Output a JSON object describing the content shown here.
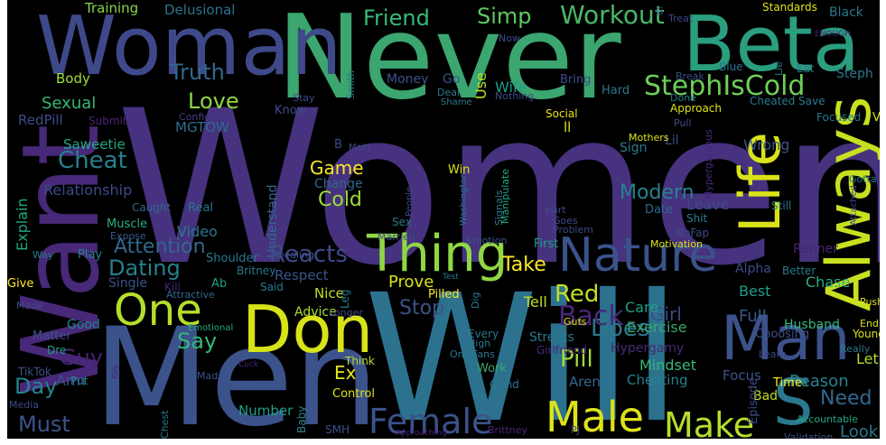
{
  "image": {
    "description_kind": "word cloud",
    "background_color": "#000000",
    "frame_color": "#ffffff",
    "palette": "viridis"
  },
  "words": [
    {
      "text": "Women",
      "color": "#46327e"
    },
    {
      "text": "Will",
      "color": "#2c728e"
    },
    {
      "text": "Men",
      "color": "#3b528b"
    },
    {
      "text": "Never",
      "color": "#3ba66f"
    },
    {
      "text": "Want",
      "color": "#482878"
    },
    {
      "text": "Woman",
      "color": "#3e4989"
    },
    {
      "text": "Beta",
      "color": "#2a9e7e"
    },
    {
      "text": "Always",
      "color": "#c8e020"
    },
    {
      "text": "Life",
      "color": "#dae319"
    },
    {
      "text": "Don",
      "color": "#d8e219"
    },
    {
      "text": "Man",
      "color": "#3b528b"
    },
    {
      "text": "Nature",
      "color": "#3b528b"
    },
    {
      "text": "Thing",
      "color": "#90d743"
    },
    {
      "text": "One",
      "color": "#b5de2b"
    },
    {
      "text": "Male",
      "color": "#dde318"
    },
    {
      "text": "Make",
      "color": "#b5de2b"
    },
    {
      "text": "Female",
      "color": "#3b528b"
    },
    {
      "text": "S",
      "color": "#2a788e"
    },
    {
      "text": "StephIsCold",
      "color": "#6ece58"
    },
    {
      "text": "Workout",
      "color": "#48b868"
    },
    {
      "text": "Simp",
      "color": "#5ec962"
    },
    {
      "text": "Friend",
      "color": "#38b977"
    },
    {
      "text": "Training",
      "color": "#86d549"
    },
    {
      "text": "Delusional",
      "color": "#2c728e"
    },
    {
      "text": "Truth",
      "color": "#31688e"
    },
    {
      "text": "Love",
      "color": "#8fd744"
    },
    {
      "text": "MGTOW",
      "color": "#2f6c8e"
    },
    {
      "text": "Body",
      "color": "#a2da37"
    },
    {
      "text": "Sexual",
      "color": "#35b779"
    },
    {
      "text": "RedPill",
      "color": "#3e4a89"
    },
    {
      "text": "Submit",
      "color": "#482475"
    },
    {
      "text": "Confidence",
      "color": "#433e85"
    },
    {
      "text": "Cheat",
      "color": "#26828e"
    },
    {
      "text": "Saweetie",
      "color": "#22a884"
    },
    {
      "text": "Explain",
      "color": "#22a884"
    },
    {
      "text": "Relationship",
      "color": "#3e4989"
    },
    {
      "text": "Game",
      "color": "#fde725"
    },
    {
      "text": "Cold",
      "color": "#a0da39"
    },
    {
      "text": "Change",
      "color": "#31688e"
    },
    {
      "text": "Understand",
      "color": "#31688e"
    },
    {
      "text": "Modern",
      "color": "#26828e"
    },
    {
      "text": "Doesn",
      "color": "#2a788e"
    },
    {
      "text": "Reacts",
      "color": "#3e4a89"
    },
    {
      "text": "Attention",
      "color": "#31688e"
    },
    {
      "text": "Dating",
      "color": "#277f8e"
    },
    {
      "text": "Take",
      "color": "#fde725"
    },
    {
      "text": "Video",
      "color": "#2a788e"
    },
    {
      "text": "Muscle",
      "color": "#29af7f"
    },
    {
      "text": "Expose",
      "color": "#38598c"
    },
    {
      "text": "Caught",
      "color": "#31688e"
    },
    {
      "text": "Real",
      "color": "#2a788e"
    },
    {
      "text": "Back",
      "color": "#482878"
    },
    {
      "text": "Red",
      "color": "#c2df23"
    },
    {
      "text": "Pill",
      "color": "#a2da37"
    },
    {
      "text": "Girl",
      "color": "#3e4a89"
    },
    {
      "text": "Say",
      "color": "#35b779"
    },
    {
      "text": "Guy",
      "color": "#482475"
    },
    {
      "text": "Day",
      "color": "#25848e"
    },
    {
      "text": "Must",
      "color": "#3b528b"
    },
    {
      "text": "Stop",
      "color": "#3b528b"
    },
    {
      "text": "Prove",
      "color": "#d8e219"
    },
    {
      "text": "Respect",
      "color": "#3b528b"
    },
    {
      "text": "Nice",
      "color": "#c2df23"
    },
    {
      "text": "Advice",
      "color": "#addc30"
    },
    {
      "text": "Ex",
      "color": "#e5e419"
    },
    {
      "text": "Single",
      "color": "#3b528b"
    },
    {
      "text": "Money",
      "color": "#3b528b"
    },
    {
      "text": "Go",
      "color": "#3b528b"
    },
    {
      "text": "Use",
      "color": "#bddf26"
    },
    {
      "text": "Wife",
      "color": "#1f9e89"
    },
    {
      "text": "Bring",
      "color": "#3e4a89"
    },
    {
      "text": "Social",
      "color": "#e5e419"
    },
    {
      "text": "Sign",
      "color": "#2a788e"
    },
    {
      "text": "Lil",
      "color": "#3e4a89"
    },
    {
      "text": "Wrong",
      "color": "#3b528b"
    },
    {
      "text": "Leave",
      "color": "#3e4a89"
    },
    {
      "text": "Date",
      "color": "#31688e"
    },
    {
      "text": "Care",
      "color": "#1f9e89"
    },
    {
      "text": "Exercise",
      "color": "#3ba66f"
    },
    {
      "text": "Full",
      "color": "#38598c"
    },
    {
      "text": "Best",
      "color": "#1f9e89"
    },
    {
      "text": "Alpha",
      "color": "#3e4a89"
    },
    {
      "text": "Chase",
      "color": "#29af7f"
    },
    {
      "text": "Husband",
      "color": "#35b779"
    },
    {
      "text": "Choosing",
      "color": "#3b528b"
    },
    {
      "text": "Reason",
      "color": "#26828e"
    },
    {
      "text": "Need",
      "color": "#31688e"
    },
    {
      "text": "Look",
      "color": "#2a788e"
    },
    {
      "text": "Let",
      "color": "#addc30"
    },
    {
      "text": "Mindset",
      "color": "#35b779"
    },
    {
      "text": "Hypergamy",
      "color": "#482878"
    },
    {
      "text": "Cheating",
      "color": "#26828e"
    },
    {
      "text": "Aren",
      "color": "#31688e"
    },
    {
      "text": "Focus",
      "color": "#3b528b"
    },
    {
      "text": "Bad",
      "color": "#c2df23"
    },
    {
      "text": "Time",
      "color": "#fde725"
    },
    {
      "text": "Episode",
      "color": "#3e4a89"
    },
    {
      "text": "Accountable",
      "color": "#22a884"
    },
    {
      "text": "Validation",
      "color": "#3b528b"
    },
    {
      "text": "Streets",
      "color": "#2a788e"
    },
    {
      "text": "Girlfriend",
      "color": "#482878"
    },
    {
      "text": "Work",
      "color": "#3ba66f"
    },
    {
      "text": "Grind",
      "color": "#2a788e"
    },
    {
      "text": "Tell",
      "color": "#c2df23"
    },
    {
      "text": "First",
      "color": "#1f9e89"
    },
    {
      "text": "Emotion",
      "color": "#3b528b"
    },
    {
      "text": "Test",
      "color": "#2a788e"
    },
    {
      "text": "Pilled",
      "color": "#fde725"
    },
    {
      "text": "Control",
      "color": "#dde318"
    },
    {
      "text": "Think",
      "color": "#b5de2b"
    },
    {
      "text": "Number",
      "color": "#1f9e89"
    },
    {
      "text": "Mad",
      "color": "#3b528b"
    },
    {
      "text": "Arm",
      "color": "#3b528b"
    },
    {
      "text": "Chest",
      "color": "#2a788e"
    },
    {
      "text": "Baby",
      "color": "#26828e"
    },
    {
      "text": "SMH",
      "color": "#3b528b"
    },
    {
      "text": "Brittney",
      "color": "#482475"
    },
    {
      "text": "PJ",
      "color": "#3e4a89"
    },
    {
      "text": "Approaching",
      "color": "#482475"
    },
    {
      "text": "Good",
      "color": "#25848e"
    },
    {
      "text": "Matter",
      "color": "#3b528b"
    },
    {
      "text": "Made",
      "color": "#3e4a89"
    },
    {
      "text": "Dre",
      "color": "#1f9e89"
    },
    {
      "text": "TikTok",
      "color": "#3b528b"
    },
    {
      "text": "Put",
      "color": "#25848e"
    },
    {
      "text": "Media",
      "color": "#3e4a89"
    },
    {
      "text": "Key",
      "color": "#482878"
    },
    {
      "text": "Give",
      "color": "#fde725"
    },
    {
      "text": "Play",
      "color": "#25848e"
    },
    {
      "text": "Way",
      "color": "#2a788e"
    },
    {
      "text": "Attractive",
      "color": "#31688e"
    },
    {
      "text": "Emotional",
      "color": "#22a884"
    },
    {
      "text": "Cuck",
      "color": "#482475"
    },
    {
      "text": "Kill",
      "color": "#482475"
    },
    {
      "text": "Said",
      "color": "#2a788e"
    },
    {
      "text": "Ab",
      "color": "#1f9e89"
    },
    {
      "text": "Shoulder",
      "color": "#2a788e"
    },
    {
      "text": "Britney",
      "color": "#2a788e"
    },
    {
      "text": "Dealing",
      "color": "#3e4a89"
    },
    {
      "text": "Married",
      "color": "#3e4a89"
    },
    {
      "text": "Sex",
      "color": "#2a788e"
    },
    {
      "text": "People",
      "color": "#3e4a89"
    },
    {
      "text": "Washington",
      "color": "#2a788e"
    },
    {
      "text": "Signals",
      "color": "#2a788e"
    },
    {
      "text": "Manipulate",
      "color": "#22a884"
    },
    {
      "text": "Win",
      "color": "#dde318"
    },
    {
      "text": "Problem",
      "color": "#3e4a89"
    },
    {
      "text": "Goes",
      "color": "#3e4a89"
    },
    {
      "text": "part",
      "color": "#3e4a89"
    },
    {
      "text": "Motivation",
      "color": "#dde318"
    },
    {
      "text": "NoFap",
      "color": "#3e4a89"
    },
    {
      "text": "Shit",
      "color": "#2a788e"
    },
    {
      "text": "Still",
      "color": "#2a788e"
    },
    {
      "text": "Hypergamous",
      "color": "#482878"
    },
    {
      "text": "Gotta",
      "color": "#2a788e"
    },
    {
      "text": "Attached",
      "color": "#3e4a89"
    },
    {
      "text": "Renner",
      "color": "#482475"
    },
    {
      "text": "Better",
      "color": "#2a788e"
    },
    {
      "text": "Push",
      "color": "#dde318"
    },
    {
      "text": "Learn",
      "color": "#3e4a89"
    },
    {
      "text": "End",
      "color": "#dde318"
    },
    {
      "text": "Young",
      "color": "#dde318"
    },
    {
      "text": "Really",
      "color": "#2a788e"
    },
    {
      "text": "High",
      "color": "#2a788e"
    },
    {
      "text": "OnlyFans",
      "color": "#2a788e"
    },
    {
      "text": "Guts",
      "color": "#dde318"
    },
    {
      "text": "Every",
      "color": "#2a788e"
    },
    {
      "text": "Deal",
      "color": "#2a788e"
    },
    {
      "text": "Shame",
      "color": "#2a788e"
    },
    {
      "text": "Nothing",
      "color": "#3e4a89"
    },
    {
      "text": "Smith",
      "color": "#2a788e"
    },
    {
      "text": "Know",
      "color": "#3e4a89"
    },
    {
      "text": "Stay",
      "color": "#3e4a89"
    },
    {
      "text": "Hard",
      "color": "#2a788e"
    },
    {
      "text": "Mothers",
      "color": "#dde318"
    },
    {
      "text": "Cheated",
      "color": "#2a788e"
    },
    {
      "text": "Save",
      "color": "#2a788e"
    },
    {
      "text": "Focused",
      "color": "#2a788e"
    },
    {
      "text": "V",
      "color": "#dde318"
    },
    {
      "text": "Eat",
      "color": "#2a788e"
    },
    {
      "text": "Steph",
      "color": "#2a788e"
    },
    {
      "text": "Lie",
      "color": "#2a788e"
    },
    {
      "text": "Blue",
      "color": "#2a788e"
    },
    {
      "text": "Break",
      "color": "#3e4a89"
    },
    {
      "text": "Approach",
      "color": "#dde318"
    },
    {
      "text": "Done",
      "color": "#2a788e"
    },
    {
      "text": "Pull",
      "color": "#3e4a89"
    },
    {
      "text": "Treat",
      "color": "#3e4a89"
    },
    {
      "text": "G",
      "color": "#3e4a89"
    },
    {
      "text": "Black",
      "color": "#2a788e"
    },
    {
      "text": "Standards",
      "color": "#dde318"
    },
    {
      "text": "ENOUGH",
      "color": "#482475"
    },
    {
      "text": "Now",
      "color": "#3e4a89"
    },
    {
      "text": "B",
      "color": "#3e4a89"
    },
    {
      "text": "Main",
      "color": "#3e4a89"
    },
    {
      "text": "ll",
      "color": "#dde318"
    },
    {
      "text": "Leg",
      "color": "#2a788e"
    },
    {
      "text": "Dig",
      "color": "#2a788e"
    },
    {
      "text": "Longer",
      "color": "#3e4a89"
    }
  ]
}
